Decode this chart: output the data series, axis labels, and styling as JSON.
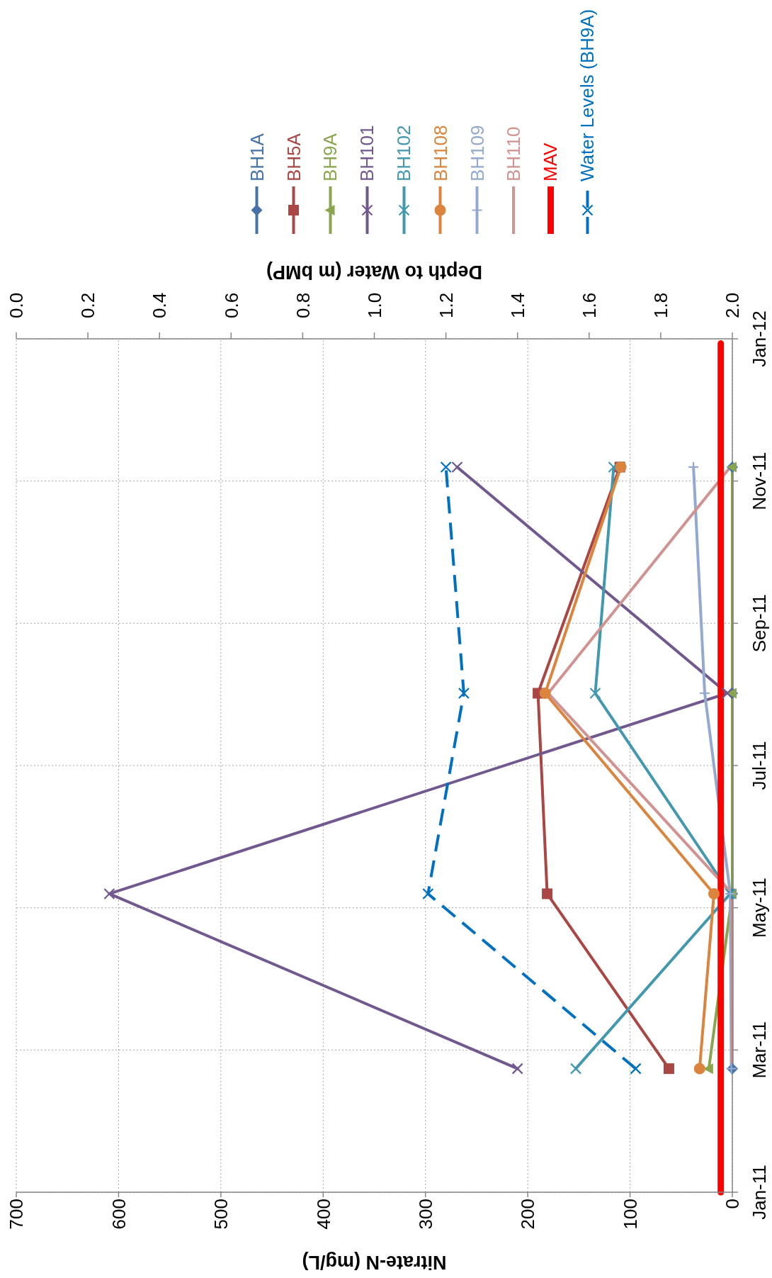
{
  "chart_data": {
    "type": "line",
    "orientation": "horizontal",
    "xlabel": "Nitrate-N (mg/L)",
    "x2label": "Depth to Water (m bMP)",
    "x": [
      "2011-02-23",
      "2011-05-09",
      "2011-08-03",
      "2011-11-08"
    ],
    "xlim": [
      700,
      0
    ],
    "xticks": [
      0,
      100,
      200,
      300,
      400,
      500,
      600,
      700
    ],
    "x2lim": [
      0,
      2
    ],
    "x2ticks": [
      {
        "value": 0,
        "label": "0.0"
      },
      0.2,
      0.4,
      0.6,
      0.8,
      {
        "value": 1,
        "label": "1.0"
      },
      1.2,
      1.4,
      1.6,
      1.8,
      {
        "value": 2,
        "label": "2.0"
      }
    ],
    "ylim": [
      "2011-01-01",
      "2012-01-02"
    ],
    "yticks": [
      {
        "value": "2011-01-01",
        "label": "Jan-11"
      },
      {
        "value": "2011-03-03",
        "label": "Mar-11"
      },
      {
        "value": "2011-05-03",
        "label": "May-11"
      },
      {
        "value": "2011-07-03",
        "label": "Jul-11"
      },
      {
        "value": "2011-09-02",
        "label": "Sep-11"
      },
      {
        "value": "2011-11-02",
        "label": "Nov-11"
      },
      {
        "value": "2012-01-02",
        "label": "Jan-12"
      }
    ],
    "grid": true,
    "legend": "top",
    "series": [
      {
        "name": "BH1A",
        "type": "scatter",
        "color": "#4572a7",
        "marker": "diamond",
        "values": [
          0,
          0,
          0,
          0
        ]
      },
      {
        "name": "BH5A",
        "color": "#aa4643",
        "marker": "square",
        "values": [
          62,
          181,
          190,
          110
        ]
      },
      {
        "name": "BH9A",
        "color": "#89a54e",
        "marker": "triangle",
        "values": [
          23,
          0,
          0,
          0
        ]
      },
      {
        "name": "BH101",
        "color": "#71588f",
        "marker": "cross",
        "values": [
          210,
          609,
          5,
          269
        ]
      },
      {
        "name": "BH102",
        "color": "#4198af",
        "marker": "cross",
        "values": [
          153,
          2,
          134,
          116
        ]
      },
      {
        "name": "BH108",
        "color": "#db843d",
        "marker": "circle",
        "values": [
          32,
          18,
          183,
          109
        ]
      },
      {
        "name": "BH109",
        "color": "#93a9cf",
        "marker": "plus",
        "values": [
          1,
          2,
          27,
          38
        ]
      },
      {
        "name": "BH110",
        "color": "#d19392",
        "marker": "none",
        "values": [
          0,
          0,
          180,
          2
        ]
      },
      {
        "name": "MAV",
        "color": "#ff0000",
        "marker": "none",
        "x": [
          "2011-01-01",
          "2011-12-31"
        ],
        "values": [
          11.3,
          11.3
        ]
      },
      {
        "name": "Water Levels (BH9A)",
        "color": "#0070c0",
        "marker": "cross",
        "line_style": "dashed",
        "axis": "x2",
        "values": [
          1.73,
          1.15,
          1.25,
          1.2
        ]
      }
    ]
  }
}
